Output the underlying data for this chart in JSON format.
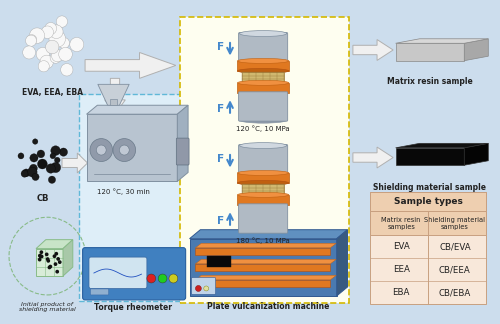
{
  "bg_color": "#ccdded",
  "labels": {
    "eva_eea_eba": "EVA, EEA, EBA",
    "cb": "CB",
    "initial_product": "Initial product of\nshielding material",
    "torque_rheometer": "Torque rheometer",
    "conditions1": "120 °C, 30 min",
    "press_cond1": "120 °C, 10 MPa",
    "press_cond2": "180 °C, 10 MPa",
    "plate_vulc": "Plate vulcanization machine",
    "matrix_sample": "Matrix resin sample",
    "shielding_sample": "Shielding material sample",
    "F": "F",
    "sample_types_title": "Sample types",
    "col1_header": "Matrix resin\nsamples",
    "col2_header": "Shielding material\nsamples",
    "row1_col1": "EVA",
    "row1_col2": "CB/EVA",
    "row2_col1": "EEA",
    "row2_col2": "CB/EEA",
    "row3_col1": "EBA",
    "row3_col2": "CB/EBA"
  },
  "colors": {
    "dashed_blue": "#60b8d8",
    "dashed_yellow": "#d4b800",
    "blue_box_fill": "#deeef8",
    "yellow_box_fill": "#fefef0",
    "press_orange": "#e07820",
    "press_silver": "#9aa4b0",
    "press_silver_dark": "#788090",
    "table_header_bg": "#eecfb0",
    "table_row_bg": "#f8e8da",
    "text_dark": "#222222",
    "arrow_white": "#f0f0f0",
    "arrow_edge": "#b0b0b0",
    "blue_arrow": "#4488cc",
    "rheometer_body": "#8898a8",
    "rheometer_face": "#b0bcc8",
    "blue_device": "#4080c0",
    "green_cube": "#88bb88",
    "green_cube_fill": "#d8ecd8"
  }
}
